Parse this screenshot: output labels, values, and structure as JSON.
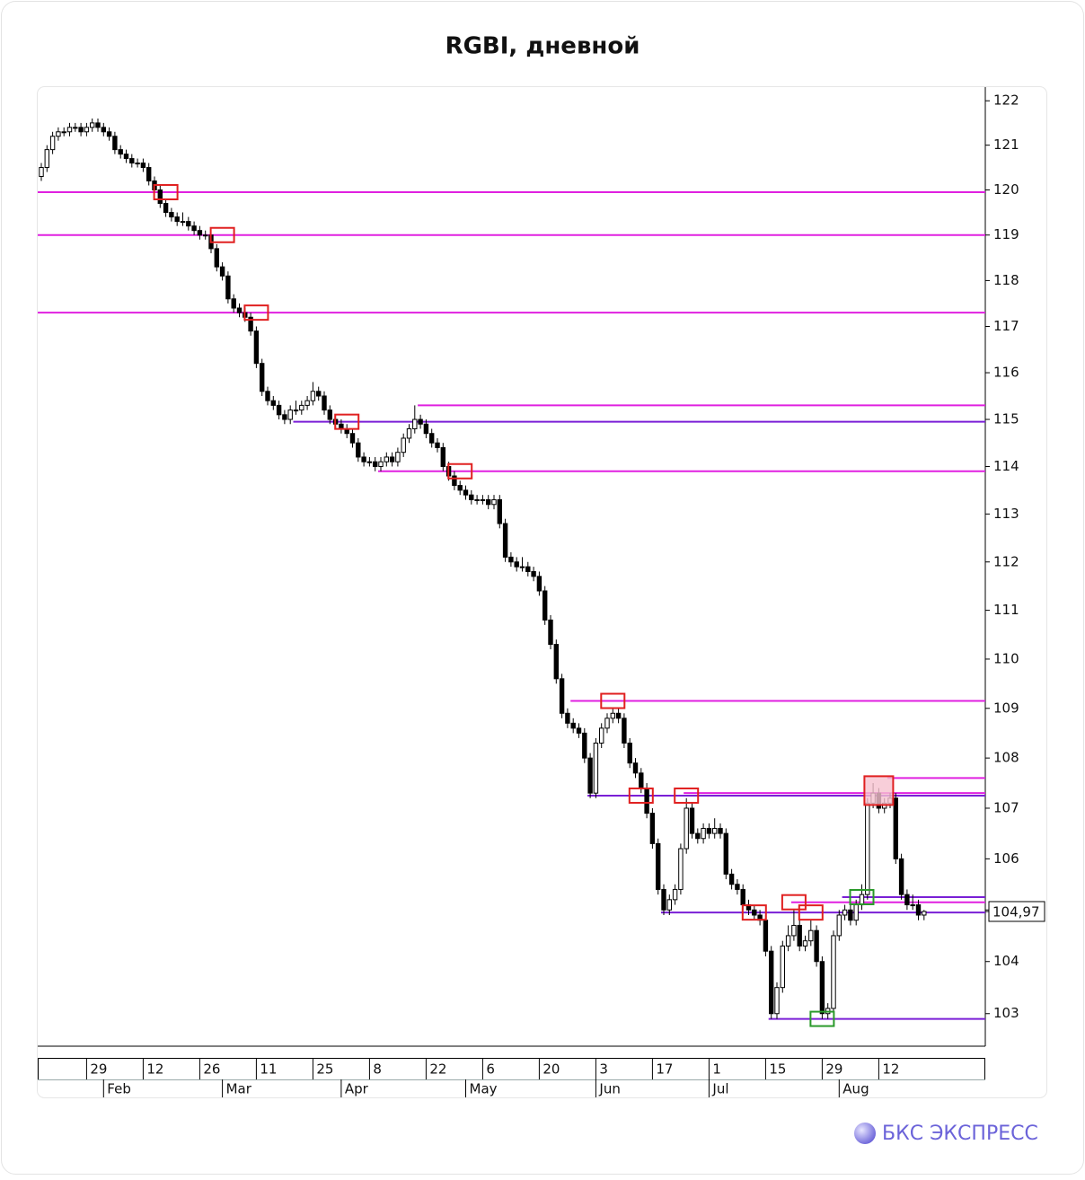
{
  "chart_data": {
    "type": "candlestick",
    "title": "RGBI, дневной",
    "log": true,
    "ylim": [
      102.38,
      122.31
    ],
    "yticks": [
      103,
      104,
      105,
      106,
      107,
      108,
      109,
      110,
      111,
      112,
      113,
      114,
      115,
      116,
      117,
      118,
      119,
      120,
      121,
      122
    ],
    "last_price": {
      "value": 104.97,
      "label": "104,97"
    },
    "up_color": "#ffffff",
    "down_color": "#000000",
    "categories": [
      null,
      null,
      null,
      null,
      null,
      null,
      null,
      null,
      "29",
      null,
      null,
      null,
      null,
      null,
      null,
      null,
      null,
      null,
      "12",
      null,
      null,
      null,
      null,
      null,
      null,
      null,
      null,
      null,
      "26",
      null,
      null,
      null,
      null,
      null,
      null,
      null,
      null,
      null,
      "11",
      null,
      null,
      null,
      null,
      null,
      null,
      null,
      null,
      null,
      "25",
      null,
      null,
      null,
      null,
      null,
      null,
      null,
      null,
      null,
      "8",
      null,
      null,
      null,
      null,
      null,
      null,
      null,
      null,
      null,
      "22",
      null,
      null,
      null,
      null,
      null,
      null,
      null,
      null,
      null,
      "6",
      null,
      null,
      null,
      null,
      null,
      null,
      null,
      null,
      null,
      "20",
      null,
      null,
      null,
      null,
      null,
      null,
      null,
      null,
      null,
      "3",
      null,
      null,
      null,
      null,
      null,
      null,
      null,
      null,
      null,
      "17",
      null,
      null,
      null,
      null,
      null,
      null,
      null,
      null,
      null,
      "1",
      null,
      null,
      null,
      null,
      null,
      null,
      null,
      null,
      null,
      "15",
      null,
      null,
      null,
      null,
      null,
      null,
      null,
      null,
      null,
      "29",
      null,
      null,
      null,
      null,
      null,
      null,
      null,
      null,
      null,
      "12",
      null,
      null,
      null,
      null,
      null,
      null,
      null,
      null
    ],
    "months": [
      null,
      null,
      null,
      null,
      null,
      null,
      null,
      null,
      null,
      null,
      null,
      "Feb",
      null,
      null,
      null,
      null,
      null,
      null,
      null,
      null,
      null,
      null,
      null,
      null,
      null,
      null,
      null,
      null,
      null,
      null,
      null,
      null,
      "Mar",
      null,
      null,
      null,
      null,
      null,
      null,
      null,
      null,
      null,
      null,
      null,
      null,
      null,
      null,
      null,
      null,
      null,
      null,
      null,
      null,
      "Apr",
      null,
      null,
      null,
      null,
      null,
      null,
      null,
      null,
      null,
      null,
      null,
      null,
      null,
      null,
      null,
      null,
      null,
      null,
      null,
      null,
      null,
      "May",
      null,
      null,
      null,
      null,
      null,
      null,
      null,
      null,
      null,
      null,
      null,
      null,
      null,
      null,
      null,
      null,
      null,
      null,
      null,
      null,
      null,
      null,
      "Jun",
      null,
      null,
      null,
      null,
      null,
      null,
      null,
      null,
      null,
      null,
      null,
      null,
      null,
      null,
      null,
      null,
      null,
      null,
      null,
      "Jul",
      null,
      null,
      null,
      null,
      null,
      null,
      null,
      null,
      null,
      null,
      null,
      null,
      null,
      null,
      null,
      null,
      null,
      null,
      null,
      null,
      null,
      null,
      "Aug",
      null,
      null,
      null,
      null,
      null,
      null,
      null,
      null,
      null,
      null,
      null,
      null,
      null,
      null,
      null
    ],
    "candles": [
      [
        120.3,
        120.6,
        120.2,
        120.5
      ],
      [
        120.5,
        121.0,
        120.4,
        120.9
      ],
      [
        120.9,
        121.3,
        120.8,
        121.2
      ],
      [
        121.2,
        121.4,
        121.1,
        121.3
      ],
      [
        121.3,
        121.4,
        121.2,
        121.3
      ],
      [
        121.3,
        121.5,
        121.2,
        121.4
      ],
      [
        121.4,
        121.5,
        121.3,
        121.4
      ],
      [
        121.4,
        121.5,
        121.2,
        121.3
      ],
      [
        121.3,
        121.5,
        121.2,
        121.4
      ],
      [
        121.4,
        121.6,
        121.3,
        121.5
      ],
      [
        121.5,
        121.6,
        121.3,
        121.4
      ],
      [
        121.4,
        121.5,
        121.2,
        121.3
      ],
      [
        121.3,
        121.4,
        121.1,
        121.2
      ],
      [
        121.2,
        121.3,
        120.8,
        120.9
      ],
      [
        120.9,
        121.0,
        120.7,
        120.8
      ],
      [
        120.8,
        120.9,
        120.6,
        120.7
      ],
      [
        120.7,
        120.8,
        120.5,
        120.6
      ],
      [
        120.6,
        120.7,
        120.5,
        120.6
      ],
      [
        120.6,
        120.7,
        120.4,
        120.5
      ],
      [
        120.5,
        120.6,
        120.1,
        120.2
      ],
      [
        120.2,
        120.3,
        119.9,
        120.0
      ],
      [
        120.0,
        120.1,
        119.6,
        119.7
      ],
      [
        119.7,
        119.8,
        119.4,
        119.5
      ],
      [
        119.5,
        119.6,
        119.3,
        119.4
      ],
      [
        119.4,
        119.5,
        119.2,
        119.3
      ],
      [
        119.3,
        119.5,
        119.2,
        119.3
      ],
      [
        119.3,
        119.4,
        119.1,
        119.2
      ],
      [
        119.2,
        119.3,
        119.0,
        119.1
      ],
      [
        119.1,
        119.2,
        118.9,
        119.0
      ],
      [
        119.0,
        119.1,
        118.9,
        119.0
      ],
      [
        119.0,
        119.1,
        118.6,
        118.7
      ],
      [
        118.7,
        118.8,
        118.2,
        118.3
      ],
      [
        118.3,
        118.4,
        118.0,
        118.1
      ],
      [
        118.1,
        118.2,
        117.5,
        117.6
      ],
      [
        117.6,
        117.7,
        117.3,
        117.4
      ],
      [
        117.4,
        117.5,
        117.2,
        117.3
      ],
      [
        117.3,
        117.4,
        117.1,
        117.2
      ],
      [
        117.2,
        117.3,
        116.8,
        116.9
      ],
      [
        116.9,
        117.0,
        116.1,
        116.2
      ],
      [
        116.2,
        116.3,
        115.5,
        115.6
      ],
      [
        115.6,
        115.7,
        115.3,
        115.4
      ],
      [
        115.4,
        115.5,
        115.2,
        115.3
      ],
      [
        115.3,
        115.4,
        115.0,
        115.1
      ],
      [
        115.1,
        115.2,
        114.9,
        115.0
      ],
      [
        115.0,
        115.3,
        114.9,
        115.2
      ],
      [
        115.2,
        115.4,
        115.1,
        115.2
      ],
      [
        115.2,
        115.4,
        115.1,
        115.3
      ],
      [
        115.3,
        115.5,
        115.2,
        115.4
      ],
      [
        115.4,
        115.8,
        115.3,
        115.6
      ],
      [
        115.6,
        115.7,
        115.4,
        115.5
      ],
      [
        115.5,
        115.6,
        115.1,
        115.2
      ],
      [
        115.2,
        115.3,
        114.9,
        115.0
      ],
      [
        115.0,
        115.1,
        114.8,
        114.9
      ],
      [
        114.9,
        115.0,
        114.7,
        114.8
      ],
      [
        114.8,
        114.9,
        114.6,
        114.7
      ],
      [
        114.7,
        114.8,
        114.4,
        114.5
      ],
      [
        114.5,
        114.6,
        114.1,
        114.2
      ],
      [
        114.2,
        114.3,
        114.0,
        114.1
      ],
      [
        114.1,
        114.2,
        114.0,
        114.1
      ],
      [
        114.1,
        114.2,
        113.9,
        114.0
      ],
      [
        114.0,
        114.2,
        113.9,
        114.1
      ],
      [
        114.1,
        114.3,
        114.0,
        114.2
      ],
      [
        114.2,
        114.3,
        114.0,
        114.1
      ],
      [
        114.1,
        114.4,
        114.0,
        114.3
      ],
      [
        114.3,
        114.7,
        114.2,
        114.6
      ],
      [
        114.6,
        114.9,
        114.5,
        114.8
      ],
      [
        114.8,
        115.3,
        114.7,
        115.0
      ],
      [
        115.0,
        115.1,
        114.8,
        114.9
      ],
      [
        114.9,
        115.0,
        114.6,
        114.7
      ],
      [
        114.7,
        114.8,
        114.4,
        114.5
      ],
      [
        114.5,
        114.6,
        114.3,
        114.4
      ],
      [
        114.4,
        114.5,
        113.9,
        114.0
      ],
      [
        114.0,
        114.1,
        113.7,
        113.8
      ],
      [
        113.8,
        113.9,
        113.5,
        113.6
      ],
      [
        113.6,
        113.7,
        113.4,
        113.5
      ],
      [
        113.5,
        113.6,
        113.3,
        113.4
      ],
      [
        113.4,
        113.5,
        113.2,
        113.3
      ],
      [
        113.3,
        113.4,
        113.2,
        113.3
      ],
      [
        113.3,
        113.4,
        113.2,
        113.3
      ],
      [
        113.3,
        113.4,
        113.1,
        113.2
      ],
      [
        113.2,
        113.4,
        113.1,
        113.3
      ],
      [
        113.3,
        113.4,
        112.7,
        112.8
      ],
      [
        112.8,
        112.9,
        112.0,
        112.1
      ],
      [
        112.1,
        112.2,
        111.9,
        112.0
      ],
      [
        112.0,
        112.1,
        111.8,
        111.9
      ],
      [
        111.9,
        112.1,
        111.8,
        111.9
      ],
      [
        111.9,
        112.0,
        111.7,
        111.8
      ],
      [
        111.8,
        111.9,
        111.6,
        111.7
      ],
      [
        111.7,
        111.8,
        111.3,
        111.4
      ],
      [
        111.4,
        111.5,
        110.7,
        110.8
      ],
      [
        110.8,
        110.9,
        110.2,
        110.3
      ],
      [
        110.3,
        110.4,
        109.5,
        109.6
      ],
      [
        109.6,
        109.7,
        108.8,
        108.9
      ],
      [
        108.9,
        109.0,
        108.6,
        108.7
      ],
      [
        108.7,
        108.8,
        108.5,
        108.6
      ],
      [
        108.6,
        108.7,
        108.4,
        108.5
      ],
      [
        108.5,
        108.6,
        107.9,
        108.0
      ],
      [
        108.0,
        108.1,
        107.2,
        107.3
      ],
      [
        107.3,
        108.4,
        107.2,
        108.3
      ],
      [
        108.3,
        108.7,
        108.2,
        108.6
      ],
      [
        108.6,
        108.9,
        108.5,
        108.8
      ],
      [
        108.8,
        109.0,
        108.7,
        108.9
      ],
      [
        108.9,
        109.0,
        108.7,
        108.8
      ],
      [
        108.8,
        108.9,
        108.2,
        108.3
      ],
      [
        108.3,
        108.4,
        107.8,
        107.9
      ],
      [
        107.9,
        108.0,
        107.6,
        107.7
      ],
      [
        107.7,
        107.8,
        107.3,
        107.4
      ],
      [
        107.4,
        107.5,
        106.8,
        106.9
      ],
      [
        106.9,
        107.0,
        106.2,
        106.3
      ],
      [
        106.3,
        106.4,
        105.3,
        105.4
      ],
      [
        105.4,
        105.5,
        104.9,
        105.0
      ],
      [
        105.0,
        105.3,
        104.9,
        105.2
      ],
      [
        105.2,
        105.5,
        105.1,
        105.4
      ],
      [
        105.4,
        106.3,
        105.3,
        106.2
      ],
      [
        106.2,
        107.2,
        106.1,
        107.0
      ],
      [
        107.0,
        107.1,
        106.4,
        106.5
      ],
      [
        106.5,
        106.6,
        106.3,
        106.4
      ],
      [
        106.4,
        106.7,
        106.3,
        106.6
      ],
      [
        106.6,
        106.7,
        106.4,
        106.5
      ],
      [
        106.5,
        106.8,
        106.4,
        106.6
      ],
      [
        106.6,
        106.7,
        106.4,
        106.5
      ],
      [
        106.5,
        106.6,
        105.6,
        105.7
      ],
      [
        105.7,
        105.8,
        105.4,
        105.5
      ],
      [
        105.5,
        105.6,
        105.3,
        105.4
      ],
      [
        105.4,
        105.5,
        105.0,
        105.1
      ],
      [
        105.1,
        105.2,
        104.9,
        105.0
      ],
      [
        105.0,
        105.1,
        104.8,
        104.9
      ],
      [
        104.9,
        105.0,
        104.7,
        104.8
      ],
      [
        104.8,
        104.9,
        104.1,
        104.2
      ],
      [
        104.2,
        104.3,
        102.9,
        103.0
      ],
      [
        103.0,
        103.6,
        102.9,
        103.5
      ],
      [
        103.5,
        104.4,
        103.4,
        104.3
      ],
      [
        104.3,
        104.7,
        104.2,
        104.5
      ],
      [
        104.5,
        105.0,
        104.4,
        104.7
      ],
      [
        104.7,
        104.8,
        104.2,
        104.3
      ],
      [
        104.3,
        104.5,
        104.2,
        104.4
      ],
      [
        104.4,
        104.8,
        104.3,
        104.6
      ],
      [
        104.6,
        104.7,
        103.9,
        104.0
      ],
      [
        104.0,
        104.1,
        102.9,
        103.0
      ],
      [
        103.0,
        103.2,
        102.9,
        103.1
      ],
      [
        103.1,
        104.6,
        103.0,
        104.5
      ],
      [
        104.5,
        105.0,
        104.4,
        104.9
      ],
      [
        104.9,
        105.1,
        104.8,
        105.0
      ],
      [
        105.0,
        105.1,
        104.7,
        104.8
      ],
      [
        104.8,
        105.2,
        104.7,
        105.1
      ],
      [
        105.1,
        105.5,
        105.0,
        105.3
      ],
      [
        105.3,
        107.2,
        105.2,
        107.1
      ],
      [
        107.1,
        107.5,
        107.0,
        107.3
      ],
      [
        107.3,
        107.4,
        106.9,
        107.0
      ],
      [
        107.0,
        107.2,
        106.9,
        107.1
      ],
      [
        107.1,
        107.3,
        107.0,
        107.2
      ],
      [
        107.2,
        107.3,
        105.9,
        106.0
      ],
      [
        106.0,
        106.1,
        105.2,
        105.3
      ],
      [
        105.3,
        105.4,
        105.0,
        105.1
      ],
      [
        105.1,
        105.3,
        105.0,
        105.1
      ],
      [
        105.1,
        105.2,
        104.8,
        104.9
      ],
      [
        104.9,
        105.0,
        104.8,
        104.97
      ]
    ],
    "levels": [
      {
        "value": 119.95,
        "from": 0,
        "color": "#e020e0"
      },
      {
        "value": 119.0,
        "from": 0,
        "color": "#e020e0"
      },
      {
        "value": 117.3,
        "from": 0,
        "color": "#e020e0"
      },
      {
        "value": 115.3,
        "from": 67,
        "color": "#e020e0"
      },
      {
        "value": 114.95,
        "from": 45,
        "color": "#7a1fd6"
      },
      {
        "value": 113.9,
        "from": 60,
        "color": "#e020e0"
      },
      {
        "value": 109.15,
        "from": 94,
        "color": "#e020e0"
      },
      {
        "value": 107.6,
        "from": 150,
        "color": "#e020e0"
      },
      {
        "value": 107.3,
        "from": 114,
        "color": "#e020e0"
      },
      {
        "value": 107.25,
        "from": 97,
        "color": "#7a1fd6"
      },
      {
        "value": 105.25,
        "from": 142,
        "color": "#7a1fd6"
      },
      {
        "value": 105.15,
        "from": 133,
        "color": "#e020e0"
      },
      {
        "value": 104.95,
        "from": 110,
        "color": "#7a1fd6"
      },
      {
        "value": 102.9,
        "from": 129,
        "color": "#7a1fd6"
      }
    ],
    "markers": [
      {
        "index": 22,
        "value": 119.95,
        "color": "#e02020"
      },
      {
        "index": 32,
        "value": 119.0,
        "color": "#e02020"
      },
      {
        "index": 38,
        "value": 117.3,
        "color": "#e02020"
      },
      {
        "index": 54,
        "value": 114.95,
        "color": "#e02020"
      },
      {
        "index": 74,
        "value": 113.9,
        "color": "#e02020"
      },
      {
        "index": 101,
        "value": 109.15,
        "color": "#e02020"
      },
      {
        "index": 106,
        "value": 107.25,
        "color": "#e02020"
      },
      {
        "index": 114,
        "value": 107.25,
        "color": "#e02020"
      },
      {
        "index": 126,
        "value": 104.95,
        "color": "#e02020"
      },
      {
        "index": 133,
        "value": 105.15,
        "color": "#e02020"
      },
      {
        "index": 136,
        "value": 104.95,
        "color": "#e02020"
      },
      {
        "index": 148,
        "value": 107.35,
        "color": "#e02020",
        "fill": "#f6c2cf"
      },
      {
        "index": 145,
        "value": 105.25,
        "color": "#2a9a2a"
      },
      {
        "index": 138,
        "value": 102.9,
        "color": "#2a9a2a"
      }
    ]
  },
  "brand": "БКС ЭКСПРЕСС"
}
